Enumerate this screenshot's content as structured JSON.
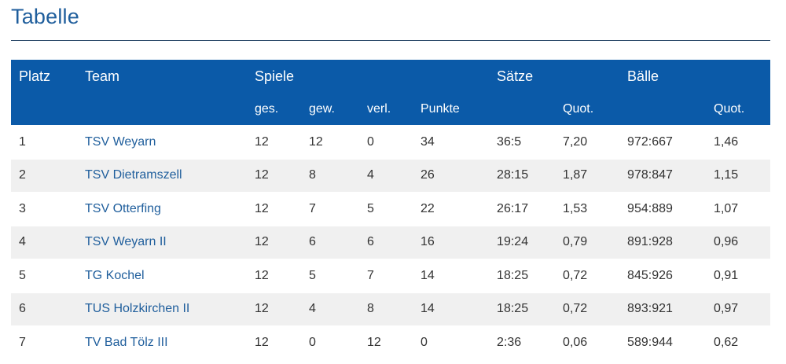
{
  "page": {
    "title": "Tabelle"
  },
  "colors": {
    "accent": "#0b5aa8",
    "link": "#1f5e9c",
    "row_alt": "#f0f0f0"
  },
  "table": {
    "header_top": {
      "platz": "Platz",
      "team": "Team",
      "spiele": "Spiele",
      "saetze": "Sätze",
      "baelle": "Bälle"
    },
    "header_sub": {
      "ges": "ges.",
      "gew": "gew.",
      "verl": "verl.",
      "punkte": "Punkte",
      "saetze_quot": "Quot.",
      "baelle_quot": "Quot."
    },
    "rows": [
      {
        "platz": "1",
        "team": "TSV Weyarn",
        "ges": "12",
        "gew": "12",
        "verl": "0",
        "punkte": "34",
        "saetze": "36:5",
        "saetze_quot": "7,20",
        "baelle": "972:667",
        "baelle_quot": "1,46"
      },
      {
        "platz": "2",
        "team": "TSV Dietramszell",
        "ges": "12",
        "gew": "8",
        "verl": "4",
        "punkte": "26",
        "saetze": "28:15",
        "saetze_quot": "1,87",
        "baelle": "978:847",
        "baelle_quot": "1,15"
      },
      {
        "platz": "3",
        "team": "TSV Otterfing",
        "ges": "12",
        "gew": "7",
        "verl": "5",
        "punkte": "22",
        "saetze": "26:17",
        "saetze_quot": "1,53",
        "baelle": "954:889",
        "baelle_quot": "1,07"
      },
      {
        "platz": "4",
        "team": "TSV Weyarn II",
        "ges": "12",
        "gew": "6",
        "verl": "6",
        "punkte": "16",
        "saetze": "19:24",
        "saetze_quot": "0,79",
        "baelle": "891:928",
        "baelle_quot": "0,96"
      },
      {
        "platz": "5",
        "team": "TG Kochel",
        "ges": "12",
        "gew": "5",
        "verl": "7",
        "punkte": "14",
        "saetze": "18:25",
        "saetze_quot": "0,72",
        "baelle": "845:926",
        "baelle_quot": "0,91"
      },
      {
        "platz": "6",
        "team": "TUS Holzkirchen II",
        "ges": "12",
        "gew": "4",
        "verl": "8",
        "punkte": "14",
        "saetze": "18:25",
        "saetze_quot": "0,72",
        "baelle": "893:921",
        "baelle_quot": "0,97"
      },
      {
        "platz": "7",
        "team": "TV Bad Tölz III",
        "ges": "12",
        "gew": "0",
        "verl": "12",
        "punkte": "0",
        "saetze": "2:36",
        "saetze_quot": "0,06",
        "baelle": "589:944",
        "baelle_quot": "0,62"
      }
    ]
  }
}
